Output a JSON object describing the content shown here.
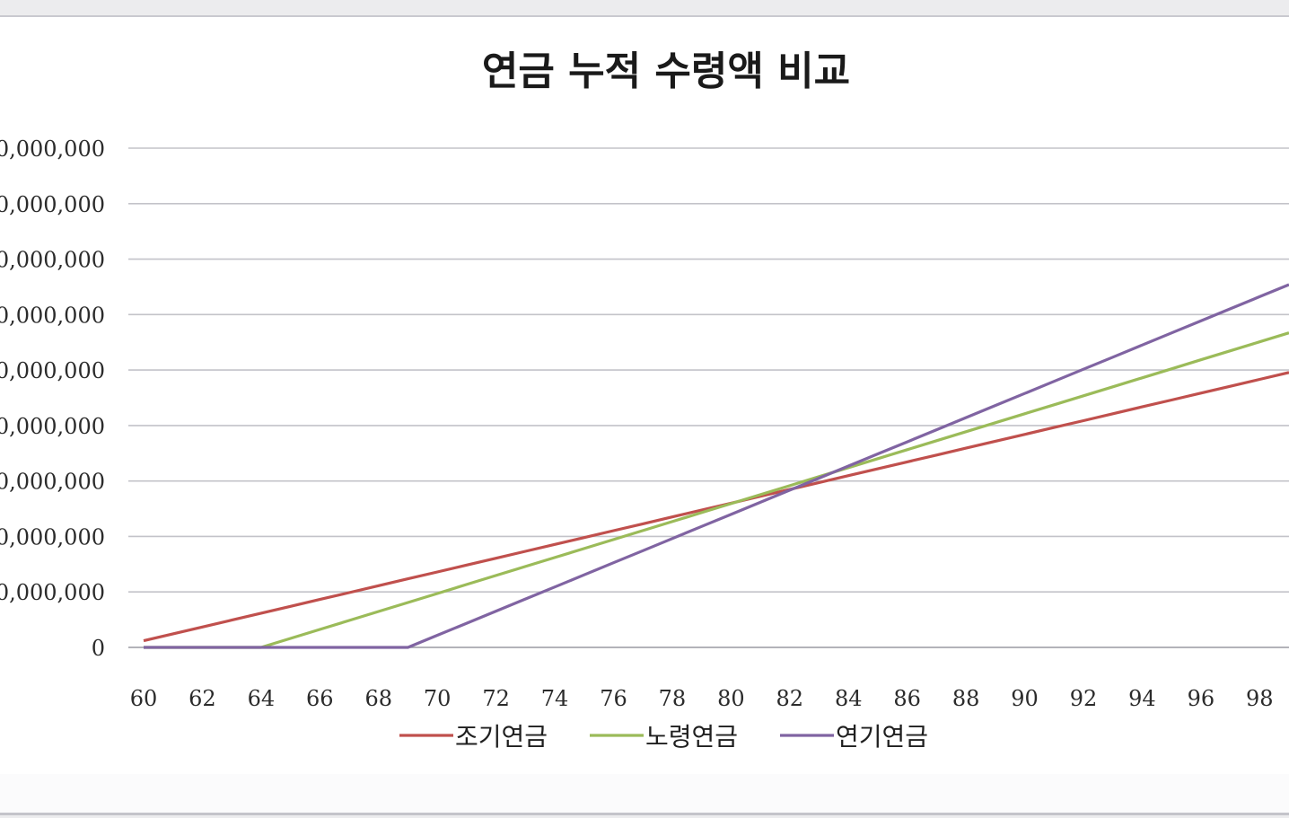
{
  "chart_data": {
    "type": "line",
    "title": "연금 누적 수령액 비교",
    "xlabel": "",
    "ylabel": "",
    "x": [
      60,
      61,
      62,
      63,
      64,
      65,
      66,
      67,
      68,
      69,
      70,
      71,
      72,
      73,
      74,
      75,
      76,
      77,
      78,
      79,
      80,
      81,
      82,
      83,
      84,
      85,
      86,
      87,
      88,
      89,
      90,
      91,
      92,
      93,
      94,
      95,
      96,
      97,
      98,
      99
    ],
    "xtick_labels": [
      "60",
      "62",
      "64",
      "66",
      "68",
      "70",
      "72",
      "74",
      "76",
      "78",
      "80",
      "82",
      "84",
      "86",
      "88",
      "90",
      "92",
      "94",
      "96",
      "98"
    ],
    "xlim": [
      60,
      99
    ],
    "ylim": [
      0,
      900000000
    ],
    "ytick_values": [
      0,
      100000000,
      200000000,
      300000000,
      400000000,
      500000000,
      600000000,
      700000000,
      800000000,
      900000000
    ],
    "ytick_labels": [
      "0",
      "0,000,000",
      "0,000,000",
      "0,000,000",
      "0,000,000",
      "0,000,000",
      "0,000,000",
      "0,000,000",
      "0,000,000",
      "0,000,000"
    ],
    "grid": true,
    "legend_position": "bottom",
    "series": [
      {
        "name": "조기연금",
        "color": "#c0504d",
        "values": [
          12000000,
          24400000,
          36800000,
          49200000,
          61600000,
          74000000,
          86400000,
          98800000,
          111200000,
          123600000,
          136000000,
          148400000,
          160800000,
          173200000,
          185600000,
          198000000,
          210400000,
          222800000,
          235200000,
          247600000,
          260000000,
          272400000,
          284800000,
          297200000,
          309600000,
          322000000,
          334400000,
          346800000,
          359200000,
          371600000,
          384000000,
          396400000,
          408800000,
          421200000,
          433600000,
          446000000,
          458400000,
          470800000,
          483200000,
          495600000
        ]
      },
      {
        "name": "노령연금",
        "color": "#9bbb59",
        "values": [
          0,
          0,
          0,
          0,
          0,
          16200000,
          32400000,
          48600000,
          64800000,
          81000000,
          97200000,
          113400000,
          129600000,
          145800000,
          162000000,
          178200000,
          194400000,
          210600000,
          226800000,
          243000000,
          259200000,
          275400000,
          291600000,
          307800000,
          324000000,
          340200000,
          356400000,
          372600000,
          388800000,
          405000000,
          421200000,
          437400000,
          453600000,
          469800000,
          486000000,
          502200000,
          518400000,
          534600000,
          550800000,
          567000000
        ]
      },
      {
        "name": "연기연금",
        "color": "#8064a2",
        "values": [
          0,
          0,
          0,
          0,
          0,
          0,
          0,
          0,
          0,
          0,
          21800000,
          43600000,
          65400000,
          87200000,
          109000000,
          130800000,
          152600000,
          174400000,
          196200000,
          218000000,
          239800000,
          261600000,
          283400000,
          305200000,
          327000000,
          348800000,
          370600000,
          392400000,
          414200000,
          436000000,
          457800000,
          479600000,
          501400000,
          523200000,
          545000000,
          566800000,
          588600000,
          610400000,
          632200000,
          654000000
        ]
      }
    ]
  }
}
